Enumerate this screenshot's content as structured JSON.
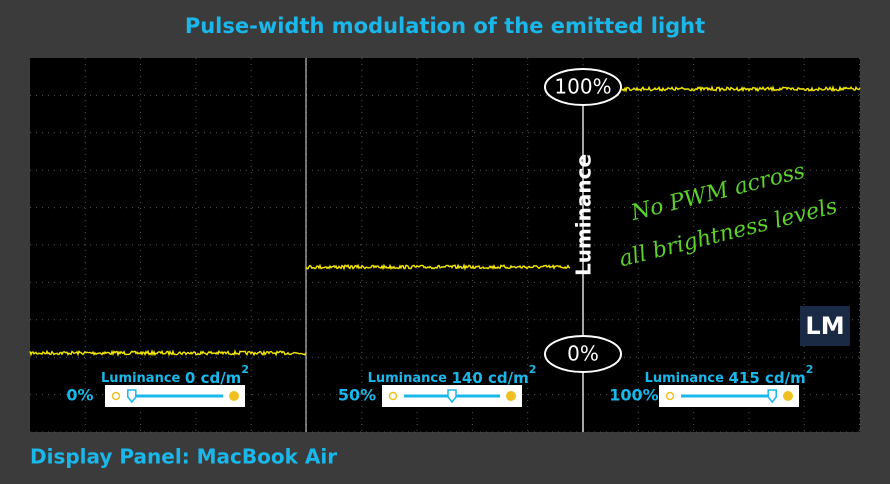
{
  "header": {
    "title": "Pulse-width modulation of the emitted light"
  },
  "scope": {
    "axis_label": "Luminance",
    "top_marker": "100%",
    "bottom_marker": "0%",
    "annotation": [
      "No PWM across",
      "all brightness levels"
    ],
    "logo": "LM",
    "panels": [
      {
        "level": "0%",
        "luminance_label": "Luminance",
        "luminance_value": "0 cd/m",
        "unit_power": "2"
      },
      {
        "level": "50%",
        "luminance_label": "Luminance",
        "luminance_value": "140 cd/m",
        "unit_power": "2"
      },
      {
        "level": "100%",
        "luminance_label": "Luminance",
        "luminance_value": "415 cd/m",
        "unit_power": "2"
      }
    ]
  },
  "footer": {
    "caption": "Display Panel: MacBook Air"
  }
}
